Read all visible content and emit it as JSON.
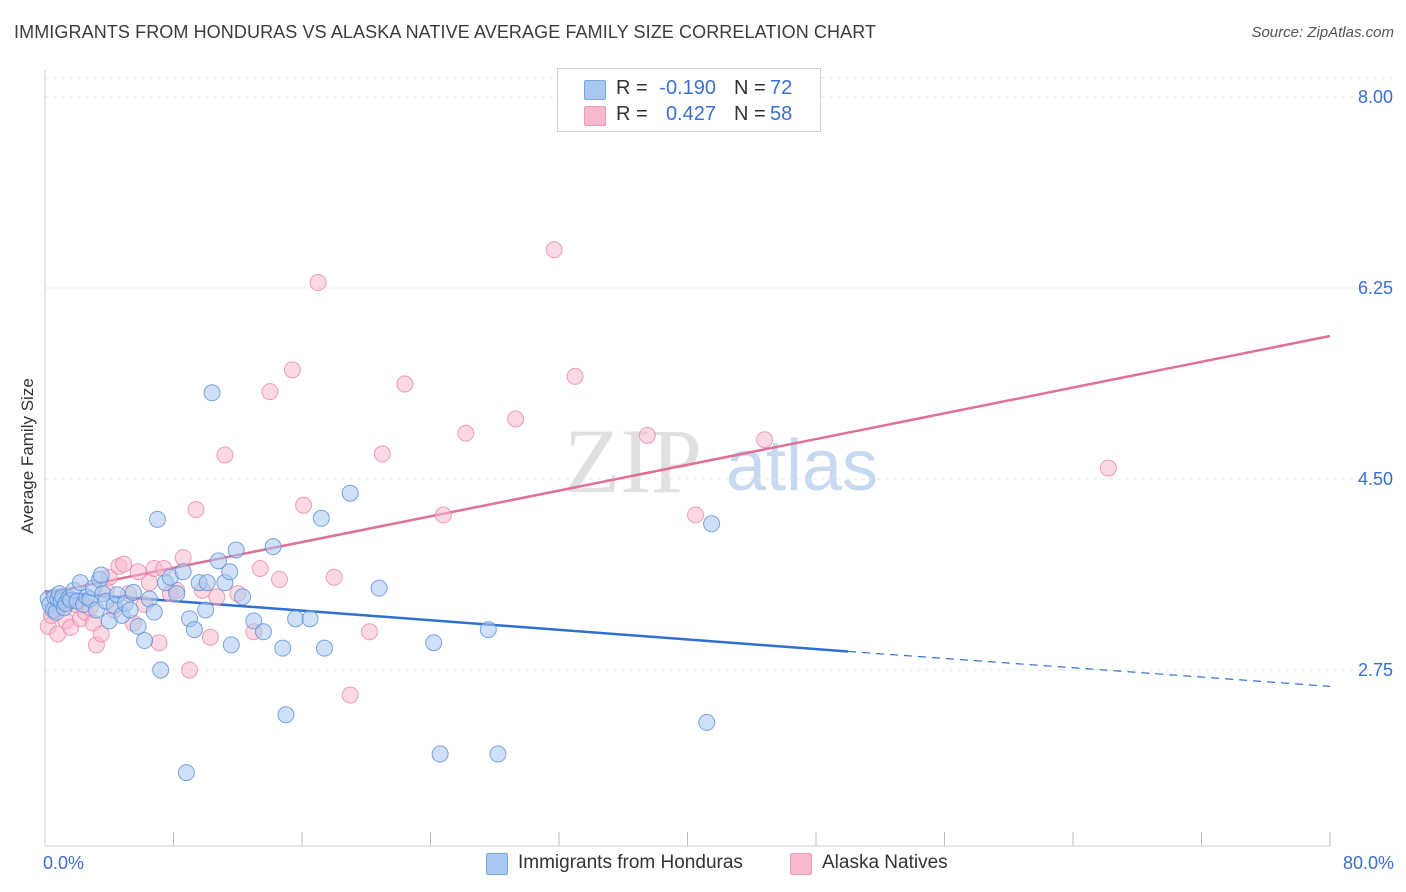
{
  "header": {
    "title": "IMMIGRANTS FROM HONDURAS VS ALASKA NATIVE AVERAGE FAMILY SIZE CORRELATION CHART",
    "source": "Source: ZipAtlas.com"
  },
  "watermark": {
    "zip": "ZIP",
    "atlas": "atlas"
  },
  "legend_top": [
    {
      "r_label": "R =",
      "r_value": "-0.190",
      "n_label": "N =",
      "n_value": "72",
      "color": "#a9c8f0"
    },
    {
      "r_label": "R =",
      "r_value": "0.427",
      "n_label": "N =",
      "n_value": "58",
      "color": "#f6b9cc"
    }
  ],
  "legend_bottom": [
    {
      "label": "Immigrants from Honduras",
      "color": "#a9c8f0"
    },
    {
      "label": "Alaska Natives",
      "color": "#f6b9cc"
    }
  ],
  "colors": {
    "blue_fill": "#a9c8f0",
    "blue_stroke": "#5d8fd6",
    "blue_line": "#2f6fcf",
    "pink_fill": "#f6b9cc",
    "pink_stroke": "#e88aa8",
    "pink_line": "#e06f97",
    "tick_label": "#3a6fd0",
    "grid": "#e4e4e4"
  },
  "chart_data": {
    "type": "scatter",
    "title": "IMMIGRANTS FROM HONDURAS VS ALASKA NATIVE AVERAGE FAMILY SIZE CORRELATION CHART",
    "xlabel": "",
    "ylabel": "Average Family Size",
    "xlim": [
      0,
      80
    ],
    "ylim": [
      1.05,
      8.3
    ],
    "x_tick_labels": [
      {
        "value": 0,
        "label": "0.0%"
      },
      {
        "value": 80,
        "label": "80.0%"
      }
    ],
    "y_ticks": [
      {
        "value": 8.0,
        "label": "8.00"
      },
      {
        "value": 6.25,
        "label": "6.25"
      },
      {
        "value": 4.5,
        "label": "4.50"
      },
      {
        "value": 2.75,
        "label": "2.75"
      }
    ],
    "x_minor_ticks": [
      8,
      16,
      24,
      32,
      40,
      48,
      56,
      64,
      72,
      80
    ],
    "grid": true,
    "series": [
      {
        "name": "Immigrants from Honduras",
        "points": [
          [
            0.2,
            3.4
          ],
          [
            0.3,
            3.35
          ],
          [
            0.5,
            3.3
          ],
          [
            0.6,
            3.42
          ],
          [
            0.7,
            3.28
          ],
          [
            0.8,
            3.4
          ],
          [
            0.9,
            3.45
          ],
          [
            1.0,
            3.38
          ],
          [
            1.1,
            3.42
          ],
          [
            1.2,
            3.32
          ],
          [
            1.3,
            3.36
          ],
          [
            1.5,
            3.41
          ],
          [
            1.6,
            3.39
          ],
          [
            1.8,
            3.48
          ],
          [
            2.0,
            3.38
          ],
          [
            2.2,
            3.55
          ],
          [
            2.4,
            3.35
          ],
          [
            2.6,
            3.42
          ],
          [
            2.8,
            3.4
          ],
          [
            3.0,
            3.5
          ],
          [
            3.2,
            3.3
          ],
          [
            3.4,
            3.58
          ],
          [
            3.6,
            3.45
          ],
          [
            3.8,
            3.38
          ],
          [
            4.0,
            3.2
          ],
          [
            4.3,
            3.34
          ],
          [
            4.5,
            3.44
          ],
          [
            4.8,
            3.25
          ],
          [
            5.0,
            3.36
          ],
          [
            5.3,
            3.3
          ],
          [
            5.5,
            3.46
          ],
          [
            5.8,
            3.15
          ],
          [
            6.2,
            3.02
          ],
          [
            6.5,
            3.4
          ],
          [
            6.8,
            3.28
          ],
          [
            7.2,
            2.75
          ],
          [
            7.5,
            3.55
          ],
          [
            7.8,
            3.6
          ],
          [
            8.2,
            3.45
          ],
          [
            8.6,
            3.65
          ],
          [
            9.0,
            3.22
          ],
          [
            9.3,
            3.12
          ],
          [
            9.6,
            3.55
          ],
          [
            10.0,
            3.3
          ],
          [
            10.4,
            5.29
          ],
          [
            10.8,
            3.75
          ],
          [
            11.2,
            3.55
          ],
          [
            11.6,
            2.98
          ],
          [
            11.9,
            3.85
          ],
          [
            12.3,
            3.42
          ],
          [
            13.0,
            3.2
          ],
          [
            13.6,
            3.1
          ],
          [
            14.2,
            3.88
          ],
          [
            14.8,
            2.95
          ],
          [
            15.0,
            2.34
          ],
          [
            15.6,
            3.22
          ],
          [
            16.5,
            3.22
          ],
          [
            17.2,
            4.14
          ],
          [
            17.4,
            2.95
          ],
          [
            19.0,
            4.37
          ],
          [
            20.8,
            3.5
          ],
          [
            24.2,
            3.0
          ],
          [
            24.6,
            1.98
          ],
          [
            28.2,
            1.98
          ],
          [
            27.6,
            3.12
          ],
          [
            7.0,
            4.13
          ],
          [
            10.1,
            3.55
          ],
          [
            11.5,
            3.65
          ],
          [
            3.5,
            3.62
          ],
          [
            8.8,
            1.81
          ],
          [
            41.2,
            2.27
          ],
          [
            41.5,
            4.09
          ]
        ]
      },
      {
        "name": "Alaska Natives",
        "points": [
          [
            0.2,
            3.15
          ],
          [
            0.4,
            3.25
          ],
          [
            0.6,
            3.3
          ],
          [
            0.8,
            3.08
          ],
          [
            1.0,
            3.35
          ],
          [
            1.3,
            3.2
          ],
          [
            1.6,
            3.14
          ],
          [
            1.9,
            3.35
          ],
          [
            2.2,
            3.22
          ],
          [
            2.5,
            3.28
          ],
          [
            2.8,
            3.32
          ],
          [
            3.0,
            3.18
          ],
          [
            3.2,
            2.98
          ],
          [
            3.5,
            3.08
          ],
          [
            3.8,
            3.48
          ],
          [
            4.0,
            3.6
          ],
          [
            4.3,
            3.3
          ],
          [
            4.6,
            3.7
          ],
          [
            4.9,
            3.72
          ],
          [
            5.2,
            3.45
          ],
          [
            5.5,
            3.18
          ],
          [
            5.8,
            3.65
          ],
          [
            6.2,
            3.35
          ],
          [
            6.5,
            3.55
          ],
          [
            6.8,
            3.68
          ],
          [
            7.1,
            3.0
          ],
          [
            7.4,
            3.68
          ],
          [
            7.8,
            3.45
          ],
          [
            8.2,
            3.48
          ],
          [
            8.6,
            3.78
          ],
          [
            9.0,
            2.75
          ],
          [
            9.4,
            4.22
          ],
          [
            9.8,
            3.48
          ],
          [
            10.3,
            3.05
          ],
          [
            10.7,
            3.42
          ],
          [
            11.2,
            4.72
          ],
          [
            12.0,
            3.45
          ],
          [
            13.0,
            3.1
          ],
          [
            13.4,
            3.68
          ],
          [
            14.0,
            5.3
          ],
          [
            14.6,
            3.58
          ],
          [
            15.4,
            5.5
          ],
          [
            16.1,
            4.26
          ],
          [
            17.0,
            6.3
          ],
          [
            18.0,
            3.6
          ],
          [
            19.0,
            2.52
          ],
          [
            20.2,
            3.1
          ],
          [
            21.0,
            4.73
          ],
          [
            22.4,
            5.37
          ],
          [
            24.8,
            4.17
          ],
          [
            26.2,
            4.92
          ],
          [
            29.3,
            5.05
          ],
          [
            31.7,
            6.6
          ],
          [
            33.0,
            5.44
          ],
          [
            37.5,
            4.9
          ],
          [
            40.5,
            4.17
          ],
          [
            44.8,
            4.86
          ],
          [
            66.2,
            4.6
          ]
        ]
      }
    ],
    "trend_lines": [
      {
        "series": "Immigrants from Honduras",
        "x_start": 0,
        "y_start": 3.47,
        "x_solid_end": 50,
        "y_solid_end": 2.92,
        "x_end": 80,
        "y_end": 2.6
      },
      {
        "series": "Alaska Natives",
        "x_start": 0,
        "y_start": 3.45,
        "x_end": 80,
        "y_end": 5.81
      }
    ]
  }
}
